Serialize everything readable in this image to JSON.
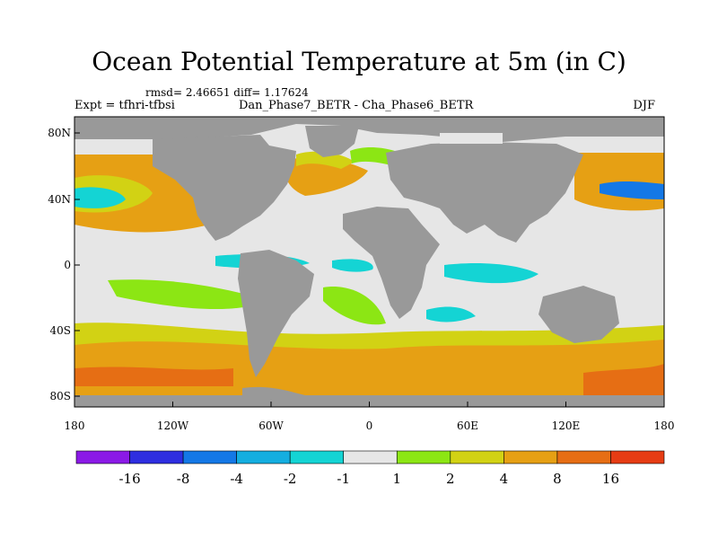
{
  "title": "Ocean Potential Temperature at 5m (in C)",
  "stats": "rmsd= 2.46651  diff= 1.17624",
  "experiment": "Expt = tfhri-tfbsi",
  "comparison": "Dan_Phase7_BETR - Cha_Phase6_BETR",
  "season": "DJF",
  "lat_ticks": [
    "80N",
    "40N",
    "0",
    "40S",
    "80S"
  ],
  "lon_ticks": [
    "180",
    "120W",
    "60W",
    "0",
    "60E",
    "120E",
    "180"
  ],
  "colorbar": {
    "colors": [
      "#8b1ae6",
      "#2e2ee0",
      "#1478e6",
      "#14aee0",
      "#14d4d4",
      "#e6e6e6",
      "#8ce614",
      "#d2d214",
      "#e6a014",
      "#e66e14",
      "#e63c14"
    ],
    "labels": [
      "-16",
      "-8",
      "-4",
      "-2",
      "-1",
      "1",
      "2",
      "4",
      "8",
      "16"
    ]
  },
  "legend_colors": {
    "land": "#999999",
    "near_zero": "#e6e6e6",
    "cyan": "#14d4d4",
    "blue": "#14aee0",
    "deep_blue": "#1478e6",
    "green": "#8ce614",
    "yellow": "#d2d214",
    "orange": "#e6a014",
    "dark_orange": "#e66e14"
  }
}
